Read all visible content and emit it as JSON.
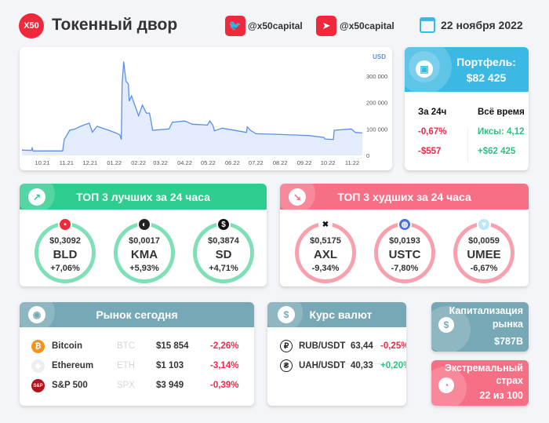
{
  "header": {
    "logo": "X50",
    "title": "Токенный двор",
    "twitter": "@x50capital",
    "telegram": "@x50capital",
    "date": "22 ноября 2022"
  },
  "colors": {
    "red": "#f0283c",
    "blue": "#3bb9e3",
    "green": "#2fcc8f",
    "pink": "#f76f85",
    "teal": "#76a8b5",
    "line": "#5b8fe8"
  },
  "chart_data": {
    "type": "area",
    "ylabel": "USD",
    "ylim": [
      0,
      380000
    ],
    "yticks": [
      "0",
      "100 000",
      "200 000",
      "300 000"
    ],
    "ytick_values": [
      0,
      100000,
      200000,
      300000
    ],
    "xticks": [
      "10.21",
      "11.21",
      "12.21",
      "01.22",
      "02.22",
      "03.22",
      "04.22",
      "05.22",
      "06.22",
      "07.22",
      "08.22",
      "09.22",
      "10.22",
      "11.22"
    ],
    "xtick_dates": [
      "2021-10-01",
      "2021-11-01",
      "2021-12-01",
      "2022-01-01",
      "2022-02-01",
      "2022-03-01",
      "2022-04-01",
      "2022-05-01",
      "2022-06-01",
      "2022-07-01",
      "2022-08-01",
      "2022-09-01",
      "2022-10-01",
      "2022-11-01"
    ],
    "x": [
      "2021-09-05",
      "2021-09-17",
      "2021-09-18",
      "2021-09-19",
      "2021-10-27",
      "2021-10-29",
      "2021-11-05",
      "2021-11-12",
      "2021-11-19",
      "2021-11-23",
      "2021-11-30",
      "2021-12-04",
      "2021-12-10",
      "2021-12-15",
      "2021-12-25",
      "2022-01-03",
      "2022-01-08",
      "2022-01-10",
      "2022-01-11",
      "2022-01-13",
      "2022-01-16",
      "2022-01-19",
      "2022-01-20",
      "2022-01-23",
      "2022-01-29",
      "2022-02-01",
      "2022-02-06",
      "2022-02-11",
      "2022-02-15",
      "2022-02-17",
      "2022-02-19",
      "2022-03-12",
      "2022-03-16",
      "2022-04-01",
      "2022-04-11",
      "2022-04-30",
      "2022-05-03",
      "2022-05-07",
      "2022-05-09",
      "2022-05-19",
      "2022-06-19",
      "2022-06-20",
      "2022-06-24",
      "2022-07-01",
      "2022-07-27",
      "2022-09-06",
      "2022-09-26",
      "2022-09-27",
      "2022-10-08",
      "2022-10-09",
      "2022-10-31",
      "2022-11-05",
      "2022-11-14"
    ],
    "y": [
      20000,
      19000,
      28000,
      17000,
      17000,
      60000,
      95000,
      100000,
      110000,
      115000,
      122000,
      88000,
      110000,
      105000,
      95000,
      85000,
      78000,
      60000,
      270000,
      355000,
      280000,
      270000,
      205000,
      225000,
      175000,
      150000,
      190000,
      160000,
      160000,
      130000,
      95000,
      100000,
      125000,
      130000,
      118000,
      115000,
      130000,
      115000,
      93000,
      103000,
      87000,
      108000,
      95000,
      82000,
      80000,
      75000,
      68000,
      62000,
      60000,
      95000,
      100000,
      87000,
      85000
    ]
  },
  "portfolio": {
    "title": "Портфель:",
    "value": "$82 425",
    "col1": "За 24ч",
    "col2": "Всё время",
    "d_pct": "-0,67%",
    "d_usd": "-$557",
    "x": "Иксы: 4,12",
    "all_usd": "+$62 425"
  },
  "best": {
    "title": "ТОП 3 лучших за 24 часа",
    "items": [
      {
        "price": "$0,3092",
        "sym": "BLD",
        "chg": "+7,06%"
      },
      {
        "price": "$0,0017",
        "sym": "KMA",
        "chg": "+5,93%"
      },
      {
        "price": "$0,3874",
        "sym": "SD",
        "chg": "+4,71%"
      }
    ]
  },
  "worst": {
    "title": "ТОП 3 худших за 24 часа",
    "items": [
      {
        "price": "$0,5175",
        "sym": "AXL",
        "chg": "-9,34%"
      },
      {
        "price": "$0,0193",
        "sym": "USTC",
        "chg": "-7,80%"
      },
      {
        "price": "$0,0059",
        "sym": "UMEE",
        "chg": "-6,67%"
      }
    ]
  },
  "market": {
    "title": "Рынок сегодня",
    "rows": [
      {
        "name": "Bitcoin",
        "tick": "BTC",
        "price": "$15 854",
        "chg": "-2,26%"
      },
      {
        "name": "Ethereum",
        "tick": "ETH",
        "price": "$1 103",
        "chg": "-3,14%"
      },
      {
        "name": "S&P 500",
        "tick": "SPX",
        "price": "$3 949",
        "chg": "-0,39%"
      }
    ]
  },
  "fx": {
    "title": "Курс валют",
    "rows": [
      {
        "pair": "RUB/USDT",
        "rate": "63,44",
        "chg": "-0,25%"
      },
      {
        "pair": "UAH/USDT",
        "rate": "40,33",
        "chg": "+0,20%"
      }
    ]
  },
  "cap": {
    "title1": "Капитализация",
    "title2": "рынка",
    "value": "$787B"
  },
  "fear": {
    "title1": "Экстремальный",
    "title2": "страх",
    "value": "22 из 100"
  }
}
